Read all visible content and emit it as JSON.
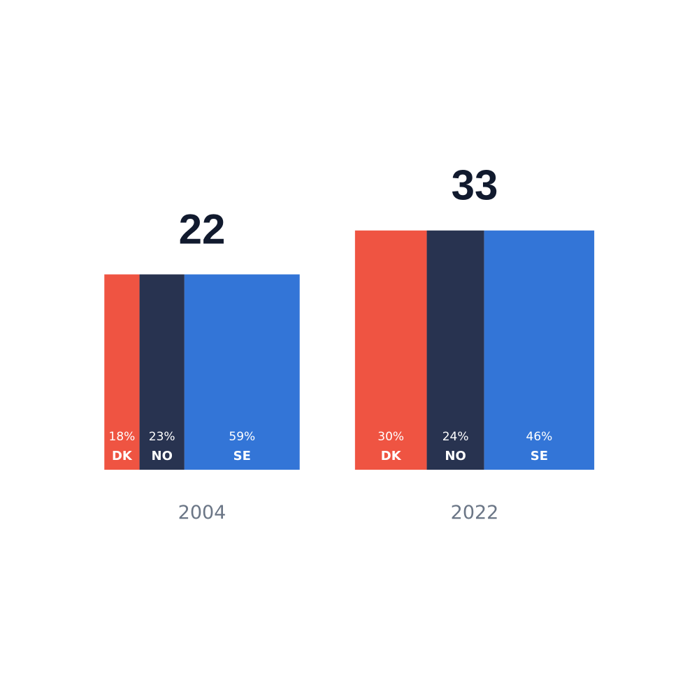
{
  "chart_data": {
    "type": "bar",
    "variant": "stacked-100-width-area",
    "grid": false,
    "legend": "none",
    "groups": [
      {
        "year": "2004",
        "total": 22,
        "total_label": "22",
        "segments": [
          {
            "code": "DK",
            "share": 18,
            "label": "18%",
            "color": "#ef5442"
          },
          {
            "code": "NO",
            "share": 23,
            "label": "23%",
            "color": "#283350"
          },
          {
            "code": "SE",
            "share": 59,
            "label": "59%",
            "color": "#3375d7"
          }
        ]
      },
      {
        "year": "2022",
        "total": 33,
        "total_label": "33",
        "segments": [
          {
            "code": "DK",
            "share": 30,
            "label": "30%",
            "color": "#ef5442"
          },
          {
            "code": "NO",
            "share": 24,
            "label": "24%",
            "color": "#283350"
          },
          {
            "code": "SE",
            "share": 46,
            "label": "46%",
            "color": "#3375d7"
          }
        ]
      }
    ]
  }
}
